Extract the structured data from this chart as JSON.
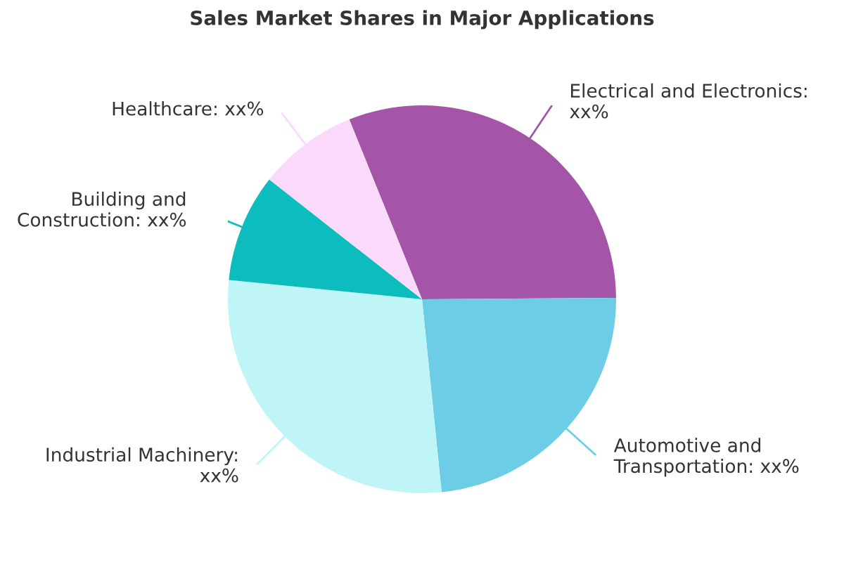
{
  "chart_data": {
    "type": "pie",
    "title": "Sales Market Shares in Major Applications",
    "categories": [
      "Electrical and Electronics: xx%",
      "Automotive and Transportation: xx%",
      "Industrial Machinery: xx%",
      "Building and Construction: xx%",
      "Healthcare: xx%"
    ],
    "values": [
      31,
      23.5,
      28.2,
      9,
      8.3
    ],
    "colors": [
      "#a455a8",
      "#6ecde6",
      "#c0f5f8",
      "#0dbcbd",
      "#fbd9fb"
    ],
    "legend": false
  }
}
